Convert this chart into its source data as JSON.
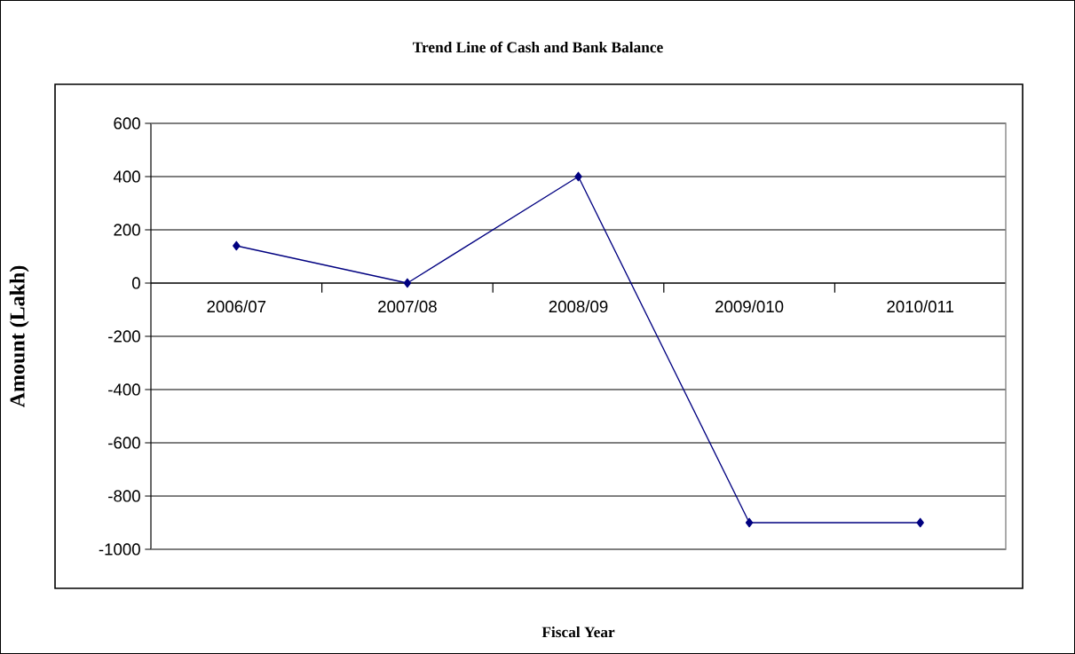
{
  "chart_data": {
    "type": "line",
    "title": "Trend Line of  Cash and Bank Balance",
    "xlabel": "Fiscal Year",
    "ylabel": "Amount (Lakh)",
    "categories": [
      "2006/07",
      "2007/08",
      "2008/09",
      "2009/010",
      "2010/011"
    ],
    "series": [
      {
        "color": "#000080",
        "values": [
          140,
          0,
          400,
          -900,
          -900
        ]
      }
    ],
    "ylim": [
      -1000,
      600
    ],
    "yticks": [
      -1000,
      -800,
      -600,
      -400,
      -200,
      0,
      200,
      400,
      600
    ],
    "grid": "y",
    "marker": "diamond",
    "line_style": "solid"
  }
}
